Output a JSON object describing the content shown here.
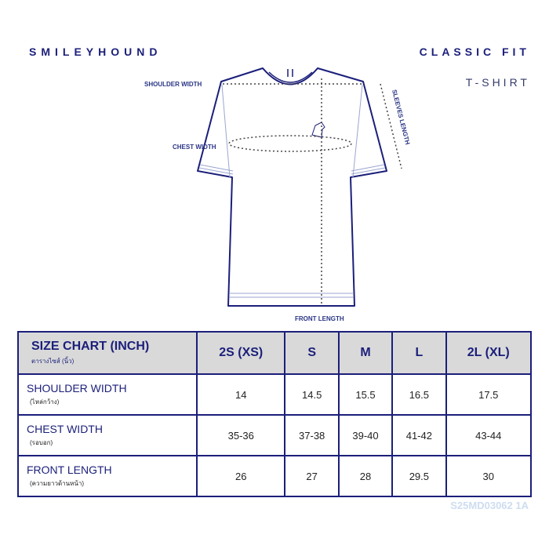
{
  "header": {
    "brand": "SMILEYHOUND",
    "fit": "CLASSIC FIT",
    "product": "T-SHIRT"
  },
  "diagram": {
    "shoulder_width": "SHOULDER WIDTH",
    "chest_width": "CHEST WIDTH",
    "sleeves_length": "SLEEVES LENGTH",
    "front_length": "FRONT LENGTH"
  },
  "table": {
    "title": "SIZE CHART (INCH)",
    "subtitle": "ตารางไซส์ (นิ้ว)",
    "columns": [
      "2S (XS)",
      "S",
      "M",
      "L",
      "2L (XL)"
    ],
    "rows": [
      {
        "label": "SHOULDER WIDTH",
        "sublabel": "(ไหล่กว้าง)",
        "values": [
          14,
          14.5,
          15.5,
          16.5,
          17.5
        ]
      },
      {
        "label": "CHEST WIDTH",
        "sublabel": "(รอบอก)",
        "values": [
          "35-36",
          "37-38",
          "39-40",
          "41-42",
          "43-44"
        ]
      },
      {
        "label": "FRONT LENGTH",
        "sublabel": "(ความยาวด้านหน้า)",
        "values": [
          26,
          27,
          28,
          29.5,
          30
        ]
      }
    ]
  },
  "footer": {
    "code": "S25MD03062 1A"
  }
}
